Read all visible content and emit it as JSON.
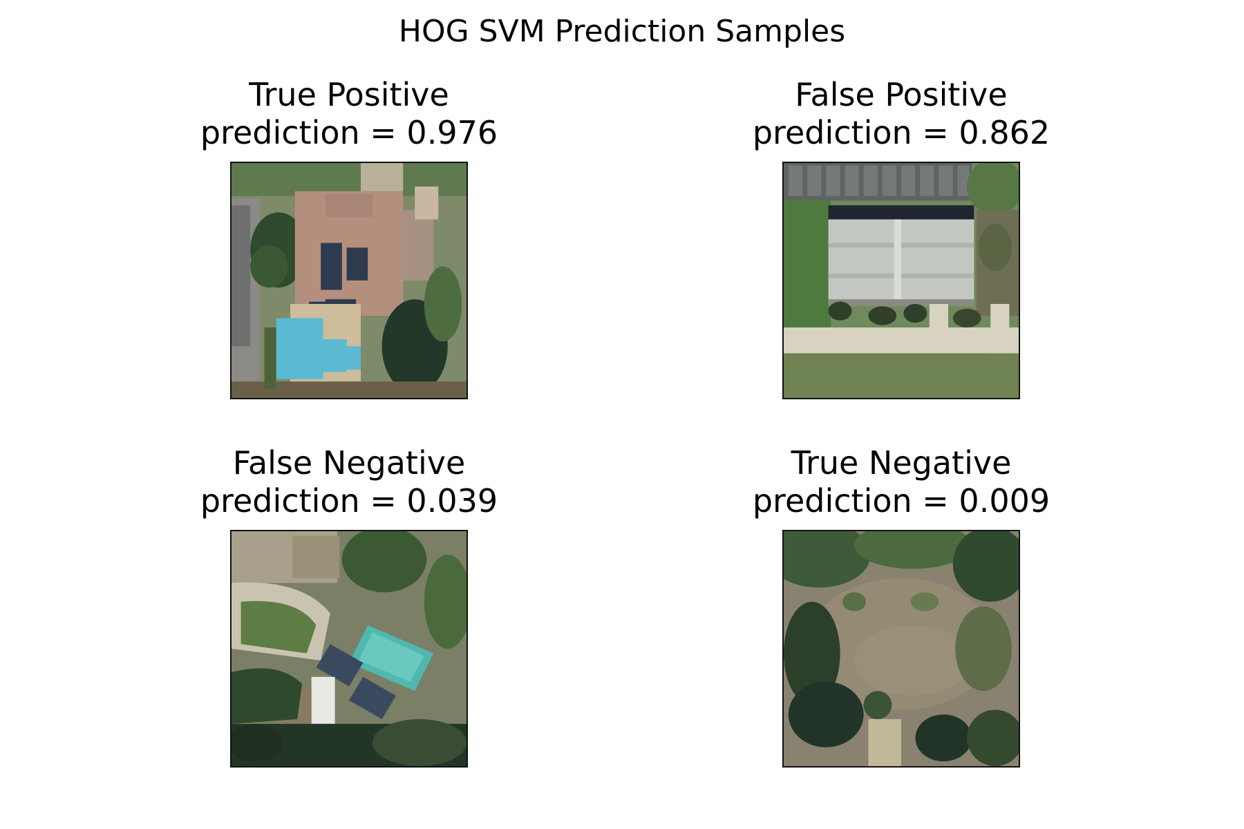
{
  "figure": {
    "title": "HOG SVM Prediction Samples"
  },
  "panels": [
    {
      "label": "True Positive",
      "prediction_text": "prediction = 0.976",
      "prediction": 0.976,
      "scene": "aerial view of house with rooftop solar panels and swimming pool"
    },
    {
      "label": "False Positive",
      "prediction_text": "prediction = 0.862",
      "prediction": 0.862,
      "scene": "aerial view of large grey-roofed building with parking lot"
    },
    {
      "label": "False Negative",
      "prediction_text": "prediction = 0.039",
      "prediction": 0.039,
      "scene": "aerial view of house with solar panels, turquoise pool and lawn"
    },
    {
      "label": "True Negative",
      "prediction_text": "prediction = 0.009",
      "prediction": 0.009,
      "scene": "aerial view of dry field surrounded by trees"
    }
  ]
}
